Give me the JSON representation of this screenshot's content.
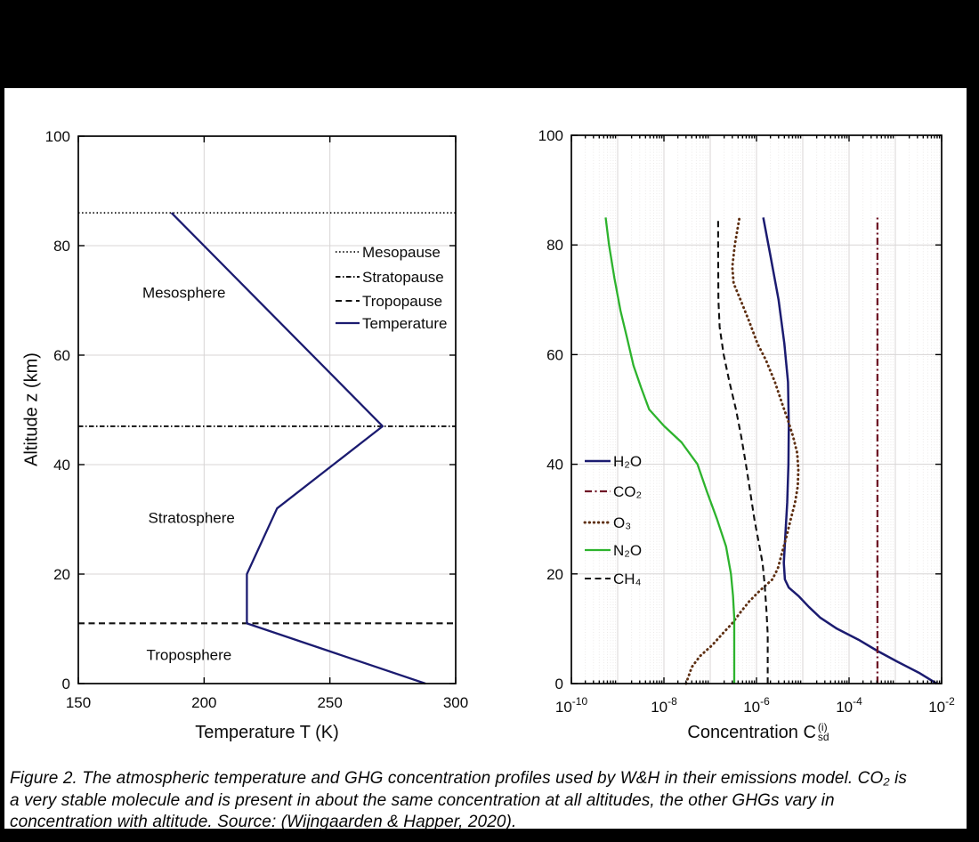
{
  "figure": {
    "caption_lines": [
      "Figure 2. The atmospheric temperature and GHG concentration profiles used by W&H in their emissions model. CO₂ is",
      "a very stable molecule and is present in about the same concentration at all altitudes, the other GHGs vary in",
      "concentration with altitude. Source: (Wijngaarden & Happer, 2020)."
    ]
  },
  "chart_data": [
    {
      "type": "line",
      "name": "temperature-profile",
      "title": "",
      "xlabel": "Temperature T (K)",
      "ylabel": "Altitude z (km)",
      "xscale": "linear",
      "xlim": [
        150,
        300
      ],
      "ylim": [
        0,
        100
      ],
      "xticks": [
        150,
        200,
        250,
        300
      ],
      "yticks": [
        0,
        20,
        40,
        60,
        80,
        100
      ],
      "grid": true,
      "grid_x": [
        200,
        250
      ],
      "legend_position": "upper-right-inside",
      "region_labels": [
        {
          "text": "Mesosphere",
          "x": 192,
          "y": 71.5
        },
        {
          "text": "Stratosphere",
          "x": 195,
          "y": 30.3
        },
        {
          "text": "Troposphere",
          "x": 194,
          "y": 5.3
        }
      ],
      "series": [
        {
          "id": "mesopause",
          "label": "Mesopause",
          "style": "dotted",
          "color": "#111111",
          "width": 1.8,
          "hline": 86
        },
        {
          "id": "stratopause",
          "label": "Stratopause",
          "style": "dashdot-short",
          "color": "#111111",
          "width": 1.9,
          "hline": 47
        },
        {
          "id": "tropopause",
          "label": "Tropopause",
          "style": "dashed",
          "color": "#111111",
          "width": 2.1,
          "hline": 11
        },
        {
          "id": "temperature",
          "label": "Temperature",
          "style": "solid",
          "color": "#1b1b70",
          "width": 2.3,
          "points": [
            [
              288,
              0
            ],
            [
              217,
              11
            ],
            [
              217,
              20
            ],
            [
              229,
              32
            ],
            [
              271,
              47
            ],
            [
              187,
              86
            ]
          ]
        }
      ]
    },
    {
      "type": "line",
      "name": "ghg-concentration-profile",
      "title": "",
      "xlabel_parts": {
        "base": "Concentration C",
        "sup": "(i)",
        "sub": "sd"
      },
      "ylabel": "",
      "xscale": "log",
      "xlim": [
        1e-10,
        0.01
      ],
      "ylim": [
        0,
        100
      ],
      "xticks": [
        1e-10,
        1e-08,
        1e-06,
        0.0001,
        0.01
      ],
      "yticks": [
        0,
        20,
        40,
        60,
        80,
        100
      ],
      "grid": true,
      "legend_position": "middle-left-inside",
      "series": [
        {
          "id": "h2o",
          "label": "H₂O",
          "style": "solid",
          "color": "#1b1b70",
          "width": 2.5,
          "points": [
            [
              0.0078,
              0
            ],
            [
              0.0032,
              2
            ],
            [
              0.0011,
              4
            ],
            [
              0.0004,
              6
            ],
            [
              0.00016,
              8
            ],
            [
              5.5e-05,
              10
            ],
            [
              2.4e-05,
              12
            ],
            [
              1.35e-05,
              14
            ],
            [
              8e-06,
              16
            ],
            [
              5e-06,
              17.5
            ],
            [
              4.1e-06,
              19
            ],
            [
              3.9e-06,
              22
            ],
            [
              4.2e-06,
              27
            ],
            [
              4.6e-06,
              33
            ],
            [
              4.9e-06,
              40
            ],
            [
              5e-06,
              47
            ],
            [
              4.8e-06,
              55
            ],
            [
              4e-06,
              62
            ],
            [
              3e-06,
              70
            ],
            [
              2e-06,
              78
            ],
            [
              1.4e-06,
              85
            ]
          ]
        },
        {
          "id": "co2",
          "label": "CO₂",
          "style": "dashdot",
          "color": "#6f1526",
          "width": 2.3,
          "points": [
            [
              0.00041,
              0
            ],
            [
              0.00041,
              85
            ]
          ]
        },
        {
          "id": "o3",
          "label": "O₃",
          "style": "dotted-round",
          "color": "#5e2f12",
          "width": 2.9,
          "points": [
            [
              3e-08,
              0
            ],
            [
              4e-08,
              3
            ],
            [
              6e-08,
              5
            ],
            [
              1.1e-07,
              7
            ],
            [
              1.8e-07,
              9
            ],
            [
              3e-07,
              11
            ],
            [
              4.5e-07,
              13
            ],
            [
              7e-07,
              15
            ],
            [
              1.2e-06,
              17
            ],
            [
              2.2e-06,
              19
            ],
            [
              2.9e-06,
              21
            ],
            [
              3.6e-06,
              24
            ],
            [
              4.5e-06,
              27
            ],
            [
              5.5e-06,
              30
            ],
            [
              6.8e-06,
              33
            ],
            [
              7.8e-06,
              36
            ],
            [
              8e-06,
              39
            ],
            [
              7.6e-06,
              42
            ],
            [
              6.2e-06,
              45
            ],
            [
              4.8e-06,
              48
            ],
            [
              3.6e-06,
              51
            ],
            [
              2.5e-06,
              55
            ],
            [
              1.6e-06,
              59
            ],
            [
              1.05e-06,
              62
            ],
            [
              7e-07,
              66
            ],
            [
              4.5e-07,
              70
            ],
            [
              3.2e-07,
              73
            ],
            [
              3e-07,
              76
            ],
            [
              3.4e-07,
              80
            ],
            [
              4.3e-07,
              85
            ]
          ]
        },
        {
          "id": "n2o",
          "label": "N₂O",
          "style": "solid",
          "color": "#2db32d",
          "width": 2.3,
          "points": [
            [
              3.3e-07,
              0
            ],
            [
              3.3e-07,
              12
            ],
            [
              3.1e-07,
              16
            ],
            [
              2.8e-07,
              20
            ],
            [
              2.2e-07,
              25
            ],
            [
              1.4e-07,
              30
            ],
            [
              8.5e-08,
              35
            ],
            [
              5.3e-08,
              40
            ],
            [
              2.4e-08,
              44
            ],
            [
              1e-08,
              47
            ],
            [
              4.8e-09,
              50
            ],
            [
              3.2e-09,
              54
            ],
            [
              2.2e-09,
              58
            ],
            [
              1.6e-09,
              63
            ],
            [
              1.15e-09,
              68
            ],
            [
              8.5e-10,
              74
            ],
            [
              6.5e-10,
              80
            ],
            [
              5.5e-10,
              85
            ]
          ]
        },
        {
          "id": "ch4",
          "label": "CH₄",
          "style": "dashed",
          "color": "#111111",
          "width": 2.1,
          "points": [
            [
              1.75e-06,
              0
            ],
            [
              1.75e-06,
              9
            ],
            [
              1.65e-06,
              13
            ],
            [
              1.5e-06,
              18
            ],
            [
              1.35e-06,
              22
            ],
            [
              1.1e-06,
              26
            ],
            [
              9e-07,
              30
            ],
            [
              7.3e-07,
              35
            ],
            [
              5.9e-07,
              40
            ],
            [
              4.7e-07,
              45
            ],
            [
              3.6e-07,
              50
            ],
            [
              2.6e-07,
              55
            ],
            [
              1.95e-07,
              60
            ],
            [
              1.6e-07,
              65
            ],
            [
              1.5e-07,
              70
            ],
            [
              1.48e-07,
              78
            ],
            [
              1.48e-07,
              85
            ]
          ]
        }
      ]
    }
  ]
}
